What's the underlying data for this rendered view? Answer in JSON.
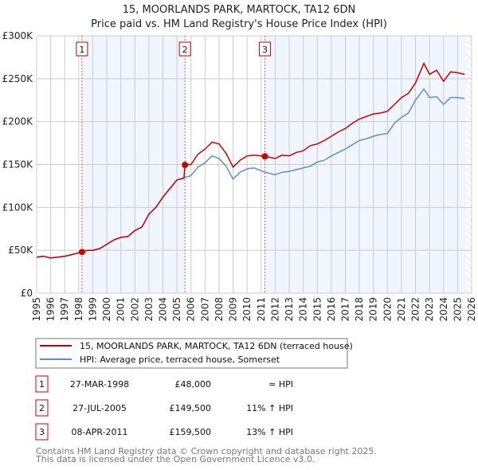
{
  "chart_data": {
    "type": "line",
    "title": "15, MOORLANDS PARK, MARTOCK, TA12 6DN",
    "subtitle": "Price paid vs. HM Land Registry's House Price Index (HPI)",
    "xlim": [
      1995,
      2026
    ],
    "ylim": [
      0,
      300000
    ],
    "x_ticks": [
      "1995",
      "1996",
      "1997",
      "1998",
      "1999",
      "2000",
      "2001",
      "2002",
      "2003",
      "2004",
      "2005",
      "2006",
      "2007",
      "2008",
      "2009",
      "2010",
      "2011",
      "2012",
      "2013",
      "2014",
      "2015",
      "2016",
      "2017",
      "2018",
      "2019",
      "2020",
      "2021",
      "2022",
      "2023",
      "2024",
      "2025",
      "2026"
    ],
    "y_ticks": [
      {
        "v": 0,
        "label": "£0"
      },
      {
        "v": 50000,
        "label": "£50K"
      },
      {
        "v": 100000,
        "label": "£100K"
      },
      {
        "v": 150000,
        "label": "£150K"
      },
      {
        "v": 200000,
        "label": "£200K"
      },
      {
        "v": 250000,
        "label": "£250K"
      },
      {
        "v": 300000,
        "label": "£300K"
      }
    ],
    "grid": true,
    "series": [
      {
        "name": "15, MOORLANDS PARK, MARTOCK, TA12 6DN (terraced house)",
        "color": "#cc0000",
        "x": [
          1995,
          1995.5,
          1996,
          1996.5,
          1997,
          1997.5,
          1998.23,
          1998.6,
          1999,
          1999.5,
          2000,
          2000.5,
          2001,
          2001.5,
          2002,
          2002.5,
          2003,
          2003.5,
          2004,
          2004.5,
          2005,
          2005.5,
          2005.57,
          2006,
          2006.5,
          2007,
          2007.5,
          2008,
          2008.5,
          2009,
          2009.5,
          2010,
          2010.5,
          2011.27,
          2012,
          2012.5,
          2013,
          2013.5,
          2014,
          2014.5,
          2015,
          2015.5,
          2016,
          2016.5,
          2017,
          2017.5,
          2018,
          2018.5,
          2019,
          2019.5,
          2020,
          2020.5,
          2021,
          2021.5,
          2022,
          2022.6,
          2023,
          2023.5,
          2024,
          2024.5,
          2025,
          2025.5
        ],
        "y": [
          42000,
          43000,
          41000,
          42000,
          43000,
          45000,
          48000,
          50000,
          50000,
          52000,
          57000,
          62000,
          65000,
          66000,
          73000,
          77000,
          92000,
          100000,
          112000,
          122000,
          132000,
          134000,
          149500,
          150000,
          162000,
          168000,
          176000,
          174000,
          163000,
          147000,
          155000,
          160000,
          161000,
          159500,
          157000,
          161000,
          160000,
          164000,
          166000,
          172000,
          174000,
          178000,
          183000,
          188000,
          192000,
          198000,
          203000,
          206000,
          209000,
          210000,
          212000,
          220000,
          228000,
          233000,
          245000,
          268000,
          255000,
          260000,
          247000,
          258000,
          257000,
          255000
        ]
      },
      {
        "name": "HPI: Average price, terraced house, Somerset",
        "color": "#5b8fd0",
        "x": [
          1995,
          1995.5,
          1996,
          1996.5,
          1997,
          1997.5,
          1998.23,
          1998.6,
          1999,
          1999.5,
          2000,
          2000.5,
          2001,
          2001.5,
          2002,
          2002.5,
          2003,
          2003.5,
          2004,
          2004.5,
          2005,
          2005.57,
          2006,
          2006.5,
          2007,
          2007.5,
          2008,
          2008.5,
          2009,
          2009.5,
          2010,
          2010.5,
          2011.27,
          2012,
          2012.5,
          2013,
          2013.5,
          2014,
          2014.5,
          2015,
          2015.5,
          2016,
          2016.5,
          2017,
          2017.5,
          2018,
          2018.5,
          2019,
          2019.5,
          2020,
          2020.5,
          2021,
          2021.5,
          2022,
          2022.6,
          2023,
          2023.5,
          2024,
          2024.5,
          2025,
          2025.5
        ],
        "y": [
          42000,
          43000,
          41000,
          42000,
          43000,
          45000,
          48000,
          50000,
          50000,
          52000,
          57000,
          62000,
          65000,
          66000,
          73000,
          77000,
          92000,
          100000,
          112000,
          122000,
          132000,
          135000,
          137000,
          147000,
          152000,
          160000,
          157000,
          148000,
          133000,
          141000,
          145000,
          146000,
          141000,
          138000,
          141000,
          142000,
          144000,
          146000,
          148000,
          153000,
          155000,
          160000,
          164000,
          168000,
          173000,
          178000,
          180000,
          183000,
          185000,
          186000,
          198000,
          205000,
          210000,
          225000,
          238000,
          228000,
          229000,
          220000,
          228000,
          228000,
          227000
        ]
      }
    ],
    "sales": [
      {
        "label": "1",
        "x": 1998.23,
        "y": 48000,
        "date": "27-MAR-1998",
        "price": "£48,000",
        "hpi": "≈ HPI"
      },
      {
        "label": "2",
        "x": 2005.57,
        "y": 149500,
        "date": "27-JUL-2005",
        "price": "£149,500",
        "hpi": "11% ↑ HPI"
      },
      {
        "label": "3",
        "x": 2011.27,
        "y": 159500,
        "date": "08-APR-2011",
        "price": "£159,500",
        "hpi": "13% ↑ HPI"
      }
    ],
    "shaded_periods": [
      [
        1998.23,
        2005.57
      ],
      [
        2011.27,
        2025.6
      ]
    ],
    "forecast_hatch_from": 2025.6,
    "legend_position": "below"
  },
  "footer": {
    "line1": "Contains HM Land Registry data © Crown copyright and database right 2025.",
    "line2": "This data is licensed under the Open Government Licence v3.0."
  }
}
